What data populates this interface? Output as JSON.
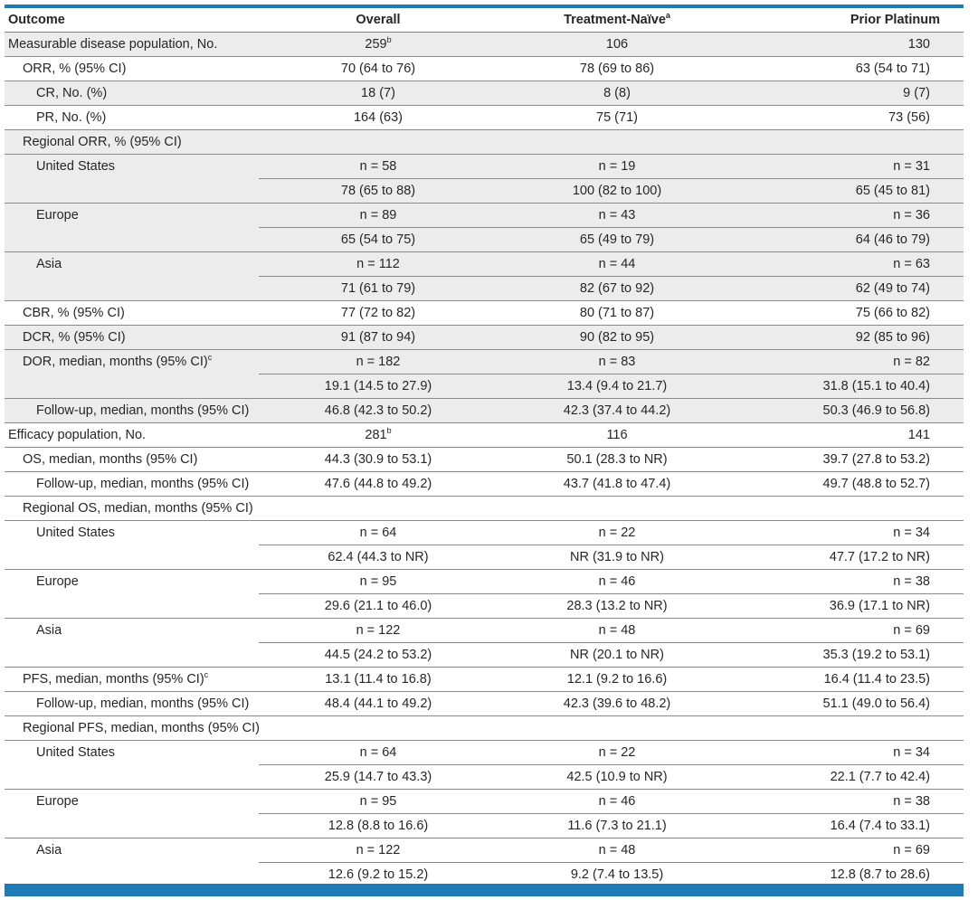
{
  "colors": {
    "accent": "#1f7bb5",
    "shade": "#ececec",
    "rule": "#8a8a8a"
  },
  "header": {
    "outcome": "Outcome",
    "overall": "Overall",
    "naive": "Treatment-Naïve",
    "naive_sup": "a",
    "platinum": "Prior Platinum"
  },
  "rows": [
    {
      "label": "Measurable disease population, No.",
      "indent": 0,
      "shade": true,
      "v": [
        "259",
        "106",
        "130"
      ],
      "sup": [
        "b",
        "",
        ""
      ]
    },
    {
      "label": "ORR, % (95% CI)",
      "indent": 1,
      "shade": false,
      "v": [
        "70 (64 to 76)",
        "78 (69 to 86)",
        "63 (54 to 71)"
      ]
    },
    {
      "label": "CR, No. (%)",
      "indent": 2,
      "shade": true,
      "v": [
        "18 (7)",
        "8 (8)",
        "9 (7)"
      ]
    },
    {
      "label": "PR, No. (%)",
      "indent": 2,
      "shade": false,
      "v": [
        "164 (63)",
        "75 (71)",
        "73 (56)"
      ]
    },
    {
      "label": "Regional ORR, % (95% CI)",
      "indent": 1,
      "shade": true,
      "v": [
        "",
        "",
        ""
      ]
    },
    {
      "label": "United States",
      "indent": 2,
      "shade": true,
      "v": [
        "n = 58",
        "n = 19",
        "n = 31"
      ],
      "merge": true
    },
    {
      "label": "",
      "indent": 2,
      "shade": true,
      "v": [
        "78 (65 to 88)",
        "100 (82 to 100)",
        "65 (45 to 81)"
      ]
    },
    {
      "label": "Europe",
      "indent": 2,
      "shade": true,
      "v": [
        "n = 89",
        "n = 43",
        "n = 36"
      ],
      "merge": true
    },
    {
      "label": "",
      "indent": 2,
      "shade": true,
      "v": [
        "65 (54 to 75)",
        "65 (49 to 79)",
        "64 (46 to 79)"
      ]
    },
    {
      "label": "Asia",
      "indent": 2,
      "shade": true,
      "v": [
        "n = 112",
        "n = 44",
        "n = 63"
      ],
      "merge": true
    },
    {
      "label": "",
      "indent": 2,
      "shade": true,
      "v": [
        "71 (61 to 79)",
        "82 (67 to 92)",
        "62 (49 to 74)"
      ]
    },
    {
      "label": "CBR, % (95% CI)",
      "indent": 1,
      "shade": false,
      "v": [
        "77 (72 to 82)",
        "80 (71 to 87)",
        "75 (66 to 82)"
      ]
    },
    {
      "label": "DCR, % (95% CI)",
      "indent": 1,
      "shade": true,
      "v": [
        "91 (87 to 94)",
        "90 (82 to 95)",
        "92 (85 to 96)"
      ]
    },
    {
      "label": "DOR, median, months (95% CI)",
      "label_sup": "c",
      "indent": 1,
      "shade": true,
      "v": [
        "n = 182",
        "n = 83",
        "n = 82"
      ],
      "merge": true
    },
    {
      "label": "",
      "indent": 1,
      "shade": true,
      "v": [
        "19.1 (14.5 to 27.9)",
        "13.4 (9.4 to 21.7)",
        "31.8 (15.1 to 40.4)"
      ]
    },
    {
      "label": "Follow-up, median, months (95% CI)",
      "indent": 2,
      "shade": true,
      "v": [
        "46.8 (42.3 to 50.2)",
        "42.3 (37.4 to 44.2)",
        "50.3 (46.9 to 56.8)"
      ]
    },
    {
      "label": "Efficacy population, No.",
      "indent": 0,
      "shade": false,
      "v": [
        "281",
        "116",
        "141"
      ],
      "sup": [
        "b",
        "",
        ""
      ]
    },
    {
      "label": "OS, median, months (95% CI)",
      "indent": 1,
      "shade": false,
      "v": [
        "44.3 (30.9 to 53.1)",
        "50.1 (28.3 to NR)",
        "39.7 (27.8 to 53.2)"
      ]
    },
    {
      "label": "Follow-up, median, months (95% CI)",
      "indent": 2,
      "shade": false,
      "v": [
        "47.6 (44.8 to 49.2)",
        "43.7 (41.8 to 47.4)",
        "49.7 (48.8 to 52.7)"
      ]
    },
    {
      "label": "Regional OS, median, months (95% CI)",
      "indent": 1,
      "shade": false,
      "v": [
        "",
        "",
        ""
      ]
    },
    {
      "label": "United States",
      "indent": 2,
      "shade": false,
      "v": [
        "n = 64",
        "n = 22",
        "n = 34"
      ],
      "merge": true
    },
    {
      "label": "",
      "indent": 2,
      "shade": false,
      "v": [
        "62.4 (44.3 to NR)",
        "NR (31.9 to NR)",
        "47.7 (17.2 to NR)"
      ]
    },
    {
      "label": "Europe",
      "indent": 2,
      "shade": false,
      "v": [
        "n = 95",
        "n = 46",
        "n = 38"
      ],
      "merge": true
    },
    {
      "label": "",
      "indent": 2,
      "shade": false,
      "v": [
        "29.6 (21.1 to 46.0)",
        "28.3 (13.2 to NR)",
        "36.9 (17.1 to NR)"
      ]
    },
    {
      "label": "Asia",
      "indent": 2,
      "shade": false,
      "v": [
        "n = 122",
        "n = 48",
        "n = 69"
      ],
      "merge": true
    },
    {
      "label": "",
      "indent": 2,
      "shade": false,
      "v": [
        "44.5 (24.2 to 53.2)",
        "NR (20.1 to NR)",
        "35.3 (19.2 to 53.1)"
      ]
    },
    {
      "label": "PFS, median, months (95% CI)",
      "label_sup": "c",
      "indent": 1,
      "shade": false,
      "v": [
        "13.1 (11.4 to 16.8)",
        "12.1 (9.2 to 16.6)",
        "16.4 (11.4 to 23.5)"
      ]
    },
    {
      "label": "Follow-up, median, months (95% CI)",
      "indent": 2,
      "shade": false,
      "v": [
        "48.4 (44.1 to 49.2)",
        "42.3 (39.6 to 48.2)",
        "51.1 (49.0 to 56.4)"
      ]
    },
    {
      "label": "Regional PFS, median, months (95% CI)",
      "indent": 1,
      "shade": false,
      "v": [
        "",
        "",
        ""
      ]
    },
    {
      "label": "United States",
      "indent": 2,
      "shade": false,
      "v": [
        "n = 64",
        "n = 22",
        "n = 34"
      ],
      "merge": true
    },
    {
      "label": "",
      "indent": 2,
      "shade": false,
      "v": [
        "25.9 (14.7 to 43.3)",
        "42.5 (10.9 to NR)",
        "22.1 (7.7 to 42.4)"
      ]
    },
    {
      "label": "Europe",
      "indent": 2,
      "shade": false,
      "v": [
        "n = 95",
        "n = 46",
        "n = 38"
      ],
      "merge": true
    },
    {
      "label": "",
      "indent": 2,
      "shade": false,
      "v": [
        "12.8 (8.8 to 16.6)",
        "11.6 (7.3 to 21.1)",
        "16.4 (7.4 to 33.1)"
      ]
    },
    {
      "label": "Asia",
      "indent": 2,
      "shade": false,
      "v": [
        "n = 122",
        "n = 48",
        "n = 69"
      ],
      "merge": true
    },
    {
      "label": "",
      "indent": 2,
      "shade": false,
      "v": [
        "12.6 (9.2 to 15.2)",
        "9.2 (7.4 to 13.5)",
        "12.8 (8.7 to 28.6)"
      ]
    }
  ]
}
